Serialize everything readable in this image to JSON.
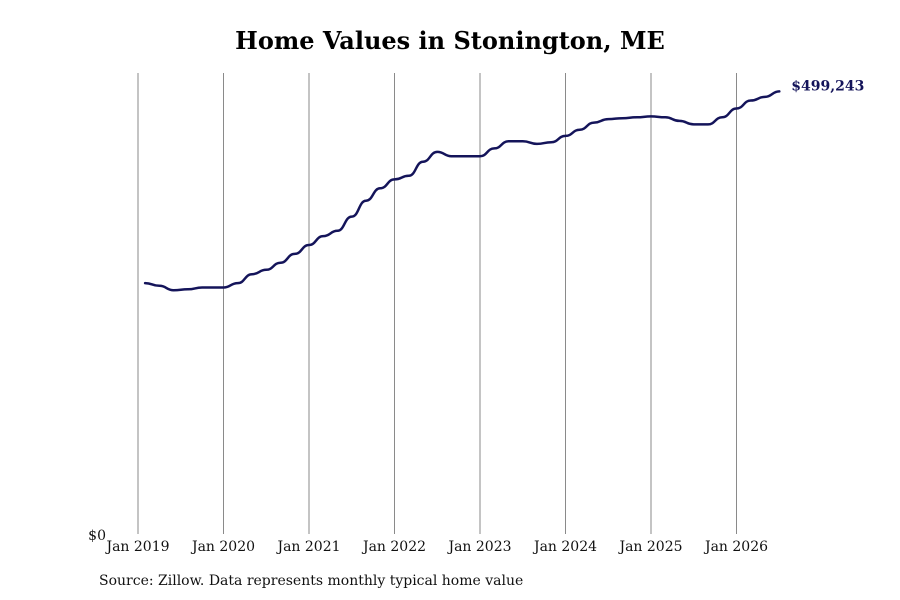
{
  "chart_data": {
    "type": "line",
    "title": "Home Values in Stonington, ME",
    "xlabel": "",
    "ylabel": "",
    "y_tick_labels": [
      "$0"
    ],
    "x_tick_labels": [
      "Jan 2019",
      "Jan 2020",
      "Jan 2021",
      "Jan 2022",
      "Jan 2023",
      "Jan 2024",
      "Jan 2025",
      "Jan 2026"
    ],
    "x_ticks": [
      "2019-01",
      "2020-01",
      "2021-01",
      "2022-01",
      "2023-01",
      "2024-01",
      "2025-01",
      "2026-01"
    ],
    "ylim": [
      0,
      520000
    ],
    "grid": "vertical",
    "end_label": "$499,243",
    "line_color": "#14145a",
    "series": [
      {
        "x": [
          "2019-02",
          "2019-04",
          "2019-06",
          "2019-08",
          "2019-10",
          "2019-12",
          "2020-01",
          "2020-03",
          "2020-05",
          "2020-07",
          "2020-09",
          "2020-11",
          "2021-01",
          "2021-03",
          "2021-05",
          "2021-07",
          "2021-09",
          "2021-11",
          "2022-01",
          "2022-03",
          "2022-05",
          "2022-07",
          "2022-09",
          "2022-11",
          "2023-01",
          "2023-03",
          "2023-05",
          "2023-07",
          "2023-09",
          "2023-11",
          "2024-01",
          "2024-03",
          "2024-05",
          "2024-07",
          "2024-09",
          "2024-11",
          "2025-01",
          "2025-03",
          "2025-05",
          "2025-07",
          "2025-09",
          "2025-11",
          "2026-01",
          "2026-03",
          "2026-05",
          "2026-07"
        ],
        "values": [
          283000,
          280000,
          275000,
          276000,
          278000,
          278000,
          278000,
          283000,
          293000,
          298000,
          306000,
          316000,
          326000,
          336000,
          342000,
          358000,
          376000,
          390000,
          400000,
          404000,
          420000,
          431000,
          426000,
          426000,
          426000,
          435000,
          443000,
          443000,
          440000,
          442000,
          449000,
          456000,
          464000,
          468000,
          469000,
          470000,
          471000,
          470000,
          466000,
          462000,
          462000,
          470000,
          480000,
          489000,
          493000,
          499243
        ]
      }
    ]
  },
  "footer": {
    "source": "Source: Zillow. Data represents monthly typical home value"
  }
}
